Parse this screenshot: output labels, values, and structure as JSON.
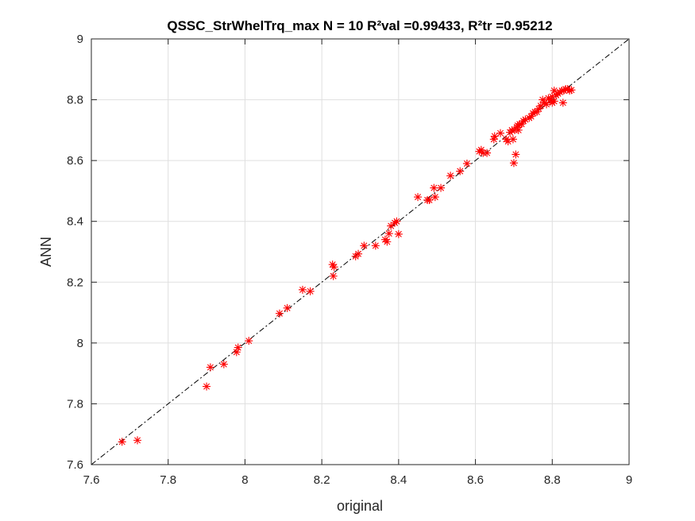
{
  "chart_data": {
    "type": "scatter",
    "title": "QSSC_StrWhelTrq_max  N = 10 R²val =0.99433, R²tr =0.95212",
    "xlabel": "original",
    "ylabel": "ANN",
    "xlim": [
      7.6,
      9
    ],
    "ylim": [
      7.6,
      9
    ],
    "x_ticks": [
      "7.6",
      "7.8",
      "8",
      "8.2",
      "8.4",
      "8.6",
      "8.8",
      "9"
    ],
    "y_ticks": [
      "7.6",
      "7.8",
      "8",
      "8.2",
      "8.4",
      "8.6",
      "8.8",
      "9"
    ],
    "grid": true,
    "legend": "none",
    "marker": "asterisk",
    "marker_color": "#ff0000",
    "reference_line": {
      "style": "dash-dot",
      "color": "#000000",
      "x": [
        7.6,
        9
      ],
      "y": [
        7.6,
        9
      ]
    },
    "series": [
      {
        "x": [
          7.68,
          7.72,
          7.9,
          7.91,
          7.945,
          7.978,
          7.982,
          8.01,
          8.09,
          8.11,
          8.15,
          8.17,
          8.228,
          8.23,
          8.232,
          8.288,
          8.295,
          8.31,
          8.34,
          8.365,
          8.37,
          8.375,
          8.38,
          8.39,
          8.395,
          8.4,
          8.45,
          8.475,
          8.48,
          8.492,
          8.495,
          8.51,
          8.535,
          8.56,
          8.578,
          8.61,
          8.615,
          8.62,
          8.63,
          8.648,
          8.65,
          8.665,
          8.68,
          8.685,
          8.69,
          8.695,
          8.698,
          8.7,
          8.702,
          8.705,
          8.708,
          8.71,
          8.712,
          8.715,
          8.72,
          8.725,
          8.73,
          8.74,
          8.745,
          8.75,
          8.755,
          8.76,
          8.765,
          8.77,
          8.775,
          8.78,
          8.785,
          8.79,
          8.795,
          8.8,
          8.805,
          8.81,
          8.815,
          8.82,
          8.825,
          8.83,
          8.835,
          8.84,
          8.845,
          8.85,
          8.8,
          8.805,
          8.828
        ],
        "y": [
          7.675,
          7.68,
          7.857,
          7.92,
          7.93,
          7.97,
          7.985,
          8.007,
          8.097,
          8.115,
          8.175,
          8.17,
          8.258,
          8.22,
          8.25,
          8.285,
          8.293,
          8.32,
          8.32,
          8.34,
          8.333,
          8.36,
          8.385,
          8.395,
          8.4,
          8.358,
          8.48,
          8.47,
          8.47,
          8.51,
          8.48,
          8.51,
          8.55,
          8.565,
          8.59,
          8.63,
          8.635,
          8.625,
          8.625,
          8.67,
          8.68,
          8.69,
          8.67,
          8.663,
          8.693,
          8.7,
          8.67,
          8.592,
          8.7,
          8.62,
          8.71,
          8.715,
          8.7,
          8.72,
          8.72,
          8.73,
          8.735,
          8.74,
          8.745,
          8.755,
          8.76,
          8.76,
          8.77,
          8.78,
          8.8,
          8.79,
          8.785,
          8.805,
          8.8,
          8.81,
          8.83,
          8.815,
          8.82,
          8.825,
          8.83,
          8.83,
          8.835,
          8.835,
          8.83,
          8.832,
          8.79,
          8.795,
          8.79
        ]
      }
    ]
  }
}
